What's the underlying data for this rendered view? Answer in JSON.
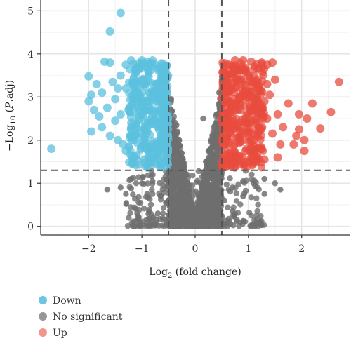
{
  "chart_data": {
    "type": "scatter",
    "title": "",
    "xlabel": {
      "prefix": "Log",
      "sub": "2",
      "suffix": " (fold change)"
    },
    "ylabel": {
      "prefix": "−Log",
      "sub": "10",
      "mid": " (",
      "italic": "P",
      "suffix": ".adj)"
    },
    "xlim": [
      -2.9,
      2.9
    ],
    "ylim": [
      -0.2,
      5.25
    ],
    "x_ticks": [
      -2,
      -1,
      0,
      1,
      2
    ],
    "x_tick_labels": [
      "−2",
      "−1",
      "0",
      "1",
      "2"
    ],
    "y_ticks": [
      0,
      1,
      2,
      3,
      4,
      5
    ],
    "y_tick_labels": [
      "0",
      "1",
      "2",
      "3",
      "4",
      "5"
    ],
    "grid": true,
    "thresholds": {
      "log2fc": [
        -0.5,
        0.5
      ],
      "neg_log10_padj": 1.3
    },
    "legend_position": "bottom-left",
    "legend": [
      {
        "label": "Down",
        "color": "#5bc0de"
      },
      {
        "label": "No significant",
        "color": "#8c8c8c"
      },
      {
        "label": "Up",
        "color": "#f08a82"
      }
    ],
    "series": [
      {
        "name": "Down",
        "color": "#5bc0de",
        "opacity": 0.75,
        "points": [
          [
            -2.7,
            1.8
          ],
          [
            -1.4,
            4.95
          ],
          [
            -1.6,
            4.52
          ],
          [
            -1.7,
            3.82
          ],
          [
            -1.6,
            3.8
          ],
          [
            -2.0,
            3.48
          ],
          [
            -1.85,
            3.3
          ],
          [
            -1.95,
            3.05
          ],
          [
            -2.0,
            2.9
          ],
          [
            -1.9,
            2.7
          ],
          [
            -1.8,
            2.55
          ],
          [
            -1.95,
            2.2
          ],
          [
            -1.6,
            2.1
          ],
          [
            -1.5,
            2.45
          ],
          [
            -1.45,
            2.0
          ],
          [
            -1.75,
            3.1
          ],
          [
            -1.55,
            3.35
          ],
          [
            -1.3,
            3.75
          ],
          [
            -1.2,
            3.85
          ],
          [
            -1.0,
            3.85
          ],
          [
            -0.9,
            3.82
          ],
          [
            -0.8,
            3.85
          ],
          [
            -1.4,
            3.5
          ],
          [
            -1.3,
            3.2
          ],
          [
            -1.1,
            3.0
          ],
          [
            -1.25,
            2.7
          ],
          [
            -1.05,
            2.5
          ],
          [
            -0.9,
            2.3
          ],
          [
            -1.15,
            2.1
          ],
          [
            -0.8,
            1.9
          ],
          [
            -0.7,
            1.7
          ],
          [
            -1.3,
            1.75
          ],
          [
            -0.95,
            1.55
          ],
          [
            -0.75,
            1.45
          ],
          [
            -1.0,
            3.4
          ],
          [
            -0.75,
            3.3
          ],
          [
            -0.65,
            3.1
          ],
          [
            -0.6,
            2.8
          ],
          [
            -0.85,
            2.7
          ],
          [
            -0.7,
            2.4
          ],
          [
            -0.6,
            2.1
          ],
          [
            -0.55,
            1.85
          ],
          [
            -0.65,
            1.55
          ],
          [
            -1.2,
            2.3
          ],
          [
            -1.4,
            2.6
          ],
          [
            -1.5,
            2.95
          ],
          [
            -1.65,
            2.75
          ],
          [
            -1.35,
            1.9
          ],
          [
            -1.1,
            1.65
          ],
          [
            -0.55,
            3.5
          ],
          [
            -0.6,
            3.65
          ],
          [
            -0.85,
            3.6
          ],
          [
            -1.05,
            3.65
          ],
          [
            -1.45,
            3.2
          ],
          [
            -1.75,
            2.3
          ]
        ]
      },
      {
        "name": "No significant",
        "color": "#6e6e6e",
        "opacity": 0.85,
        "points": [
          [
            -0.45,
            2.7
          ],
          [
            -0.35,
            2.35
          ],
          [
            -0.3,
            2.0
          ],
          [
            -0.4,
            1.9
          ],
          [
            -0.25,
            1.7
          ],
          [
            -0.2,
            1.45
          ],
          [
            -0.15,
            1.2
          ],
          [
            -0.1,
            0.95
          ],
          [
            -0.05,
            0.7
          ],
          [
            0.0,
            0.5
          ],
          [
            0.05,
            0.75
          ],
          [
            0.1,
            1.0
          ],
          [
            0.15,
            1.25
          ],
          [
            0.2,
            1.5
          ],
          [
            0.25,
            1.75
          ],
          [
            0.3,
            2.0
          ],
          [
            0.35,
            2.3
          ],
          [
            0.4,
            2.6
          ],
          [
            0.45,
            2.85
          ],
          [
            0.15,
            2.5
          ],
          [
            -0.4,
            1.1
          ],
          [
            -0.6,
            0.95
          ],
          [
            -0.8,
            1.05
          ],
          [
            -1.0,
            1.0
          ],
          [
            -1.2,
            1.1
          ],
          [
            -1.4,
            0.9
          ],
          [
            -1.65,
            0.85
          ],
          [
            -0.55,
            0.55
          ],
          [
            -0.35,
            0.4
          ],
          [
            -0.2,
            0.2
          ],
          [
            0.0,
            0.05
          ],
          [
            0.2,
            0.25
          ],
          [
            0.35,
            0.45
          ],
          [
            0.55,
            0.6
          ],
          [
            0.7,
            0.9
          ],
          [
            0.9,
            1.05
          ],
          [
            1.1,
            1.0
          ],
          [
            1.3,
            1.1
          ],
          [
            1.5,
            1.0
          ],
          [
            1.6,
            0.85
          ],
          [
            1.3,
            0.75
          ],
          [
            -1.3,
            0.75
          ],
          [
            -0.9,
            0.75
          ],
          [
            0.9,
            0.7
          ],
          [
            -0.7,
            0.3
          ],
          [
            0.7,
            0.35
          ],
          [
            -0.1,
            0.3
          ],
          [
            0.1,
            0.4
          ],
          [
            -0.3,
            0.8
          ],
          [
            0.3,
            0.85
          ],
          [
            -0.5,
            1.25
          ],
          [
            0.5,
            1.25
          ],
          [
            -0.45,
            2.95
          ],
          [
            0.45,
            3.1
          ],
          [
            0.5,
            3.4
          ]
        ]
      },
      {
        "name": "Up",
        "color": "#e84c3d",
        "opacity": 0.75,
        "points": [
          [
            2.7,
            3.35
          ],
          [
            2.55,
            2.65
          ],
          [
            2.35,
            2.27
          ],
          [
            2.2,
            2.85
          ],
          [
            2.1,
            2.5
          ],
          [
            2.05,
            2.0
          ],
          [
            1.95,
            2.6
          ],
          [
            1.95,
            2.25
          ],
          [
            1.9,
            2.1
          ],
          [
            1.85,
            1.9
          ],
          [
            2.05,
            1.75
          ],
          [
            1.6,
            1.9
          ],
          [
            1.55,
            2.6
          ],
          [
            1.75,
            2.85
          ],
          [
            1.35,
            3.75
          ],
          [
            1.35,
            3.3
          ],
          [
            1.25,
            3.8
          ],
          [
            1.05,
            3.82
          ],
          [
            0.9,
            3.85
          ],
          [
            0.75,
            3.85
          ],
          [
            0.6,
            3.6
          ],
          [
            0.6,
            3.2
          ],
          [
            0.65,
            2.9
          ],
          [
            0.55,
            2.6
          ],
          [
            0.6,
            2.3
          ],
          [
            0.55,
            1.9
          ],
          [
            0.65,
            1.6
          ],
          [
            0.75,
            1.4
          ],
          [
            0.8,
            3.4
          ],
          [
            0.9,
            3.1
          ],
          [
            0.85,
            2.7
          ],
          [
            0.95,
            2.4
          ],
          [
            0.8,
            2.05
          ],
          [
            0.95,
            1.75
          ],
          [
            1.0,
            1.5
          ],
          [
            1.1,
            3.5
          ],
          [
            1.05,
            3.0
          ],
          [
            1.15,
            2.7
          ],
          [
            1.2,
            2.3
          ],
          [
            1.1,
            2.0
          ],
          [
            1.25,
            1.8
          ],
          [
            1.3,
            1.55
          ],
          [
            1.35,
            2.5
          ],
          [
            1.4,
            3.05
          ],
          [
            1.45,
            2.15
          ],
          [
            1.2,
            3.25
          ],
          [
            0.7,
            3.7
          ],
          [
            1.55,
            1.6
          ],
          [
            1.65,
            2.3
          ],
          [
            1.5,
            3.4
          ],
          [
            1.45,
            3.8
          ],
          [
            0.55,
            3.3
          ],
          [
            1.0,
            2.2
          ],
          [
            1.1,
            1.7
          ],
          [
            1.3,
            2.9
          ]
        ]
      }
    ]
  }
}
